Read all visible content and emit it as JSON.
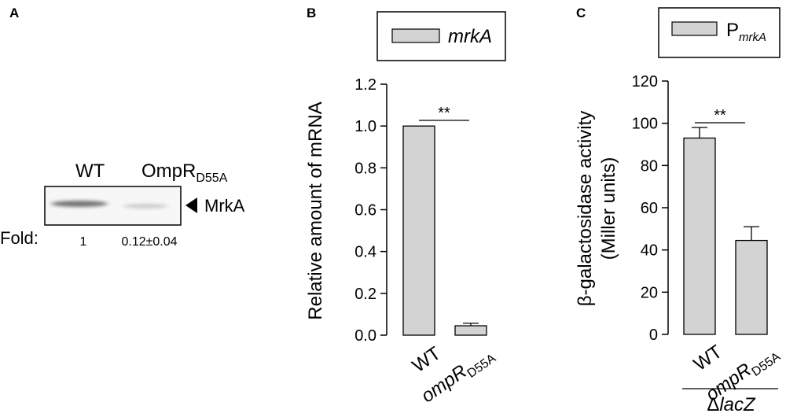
{
  "panels": {
    "a": {
      "label": "A",
      "lane_labels": [
        "WT",
        "OmpR",
        "D55A"
      ],
      "band_label": "MrkA",
      "fold_label": "Fold:",
      "fold_values": [
        "1",
        "0.12±0.04"
      ],
      "band_intensity": [
        1.0,
        0.12
      ]
    },
    "b": {
      "label": "B",
      "legend": "mrkA",
      "sig": "**"
    },
    "c": {
      "label": "C",
      "legend_main": "P",
      "legend_sub": "mrkA",
      "sig": "**",
      "group_label_prefix": "Δ",
      "group_label": "lacZ"
    }
  },
  "chart_data": [
    {
      "panel": "B",
      "type": "bar",
      "categories": [
        "WT",
        "ompR_D55A"
      ],
      "category_labels": [
        {
          "main": "WT",
          "sub": ""
        },
        {
          "main": "ompR",
          "sub": "D55A"
        }
      ],
      "values": [
        1.0,
        0.045
      ],
      "errors": [
        0,
        0.012
      ],
      "ylabel": "Relative amount of mRNA",
      "ylim": [
        0,
        1.2
      ],
      "yticks": [
        "0.0",
        "0.2",
        "0.4",
        "0.6",
        "0.8",
        "1.0",
        "1.2"
      ],
      "legend": [
        "mrkA"
      ],
      "significance": "**",
      "bar_color": "#d3d3d3"
    },
    {
      "panel": "C",
      "type": "bar",
      "categories": [
        "WT",
        "ompR_D55A"
      ],
      "category_labels": [
        {
          "main": "WT",
          "sub": ""
        },
        {
          "main": "ompR",
          "sub": "D55A"
        }
      ],
      "values": [
        93,
        44.5
      ],
      "errors": [
        5,
        6.5
      ],
      "ylabel_line1": "β-galactosidase activity",
      "ylabel_line2": "(Miller units)",
      "ylim": [
        0,
        120
      ],
      "yticks": [
        "0",
        "20",
        "40",
        "60",
        "80",
        "100",
        "120"
      ],
      "legend": [
        "PmrkA"
      ],
      "significance": "**",
      "bar_color": "#d3d3d3"
    }
  ]
}
